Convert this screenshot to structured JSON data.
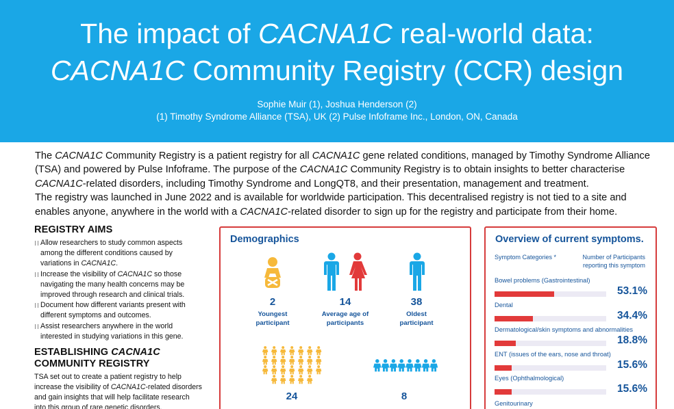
{
  "header": {
    "title_line1_a": "The impact of ",
    "title_line1_b": "CACNA1C",
    "title_line1_c": " real-world data:",
    "title_line2_a": "CACNA1C",
    "title_line2_b": " Community Registry (CCR) design",
    "authors": "Sophie Muir (1), Joshua Henderson (2)",
    "affiliations": "(1) Timothy Syndrome Alliance (TSA), UK (2) Pulse Infoframe Inc., London, ON, Canada",
    "background_color": "#1aa7e6"
  },
  "intro": {
    "s1": "The ",
    "s2": "CACNA1C",
    "s3": " Community Registry is a patient registry for all ",
    "s4": "CACNA1C",
    "s5": " gene related conditions, managed by Timothy Syndrome Alliance (TSA) and powered by Pulse Infoframe. The purpose of the ",
    "s6": "CACNA1C",
    "s7": " Community Registry is to obtain insights to better characterise ",
    "s8": "CACNA1C",
    "s9": "-related disorders, including Timothy Syndrome and LongQT8, and their presentation, management and treatment.",
    "p2a": "The registry was launched in June 2022 and is available for worldwide participation. This decentralised registry is not tied to a site and enables anyone, anywhere in the world with a ",
    "p2b": "CACNA1C",
    "p2c": "-related disorder to sign up for the registry and participate from their home."
  },
  "aims": {
    "title": "REGISTRY AIMS",
    "item1_a": "Allow researchers to study common aspects among the different conditions caused by variations in ",
    "item1_b": "CACNA1C",
    "item1_c": ".",
    "item2_a": "Increase the visibility of ",
    "item2_b": "CACNA1C",
    "item2_c": " so those navigating the many health concerns may be improved through research and clinical trials.",
    "item3": "Document how different variants present with different symptoms and outcomes.",
    "item4": "Assist researchers anywhere in the world interested in studying variations in this gene."
  },
  "establishing": {
    "title_a": "ESTABLISHING ",
    "title_b": "CACNA1C",
    "title_c": "COMMUNITY REGISTRY",
    "text_a": "TSA set out to create a patient registry to help increase the visibility of ",
    "text_b": "CACNA1C",
    "text_c": "-related disorders and gain insights that will help facilitate research into this group of rare genetic disorders."
  },
  "demographics": {
    "title": "Demographics",
    "youngest": {
      "value": "2",
      "label_1": "Youngest",
      "label_2": "participant",
      "icon": "baby-icon"
    },
    "average": {
      "value": "14",
      "label_1": "Average age of",
      "label_2": "participants",
      "icon": "male-female-icon"
    },
    "oldest": {
      "value": "38",
      "label_1": "Oldest",
      "label_2": "participant",
      "icon": "person-icon"
    },
    "group_under": {
      "value": "24",
      "icon": "child-group-icon"
    },
    "group_over": {
      "value": "8",
      "icon": "adult-group-icon"
    },
    "colors": {
      "blue": "#1aa7e6",
      "red": "#e23a3a",
      "yellow": "#f6b93b",
      "navy": "#15549a"
    }
  },
  "symptoms": {
    "title": "Overview of current symptoms.",
    "col_category": "Symptom Categories *",
    "col_count_1": "Number of Participants",
    "col_count_2": "reporting this symptom",
    "items": [
      {
        "label": "Bowel problems (Gastrointestinal)",
        "pct": "53.1%",
        "value": 53.1
      },
      {
        "label": "Dental",
        "pct": "34.4%",
        "value": 34.4
      },
      {
        "label": "Dermatological/skin symptoms and abnormalities",
        "pct": "18.8%",
        "value": 18.8
      },
      {
        "label": "ENT (issues of the ears, nose and throat)",
        "pct": "15.6%",
        "value": 15.6
      },
      {
        "label": "Eyes (Ophthalmological)",
        "pct": "15.6%",
        "value": 15.6
      }
    ],
    "next_label": "Genitourinary"
  }
}
